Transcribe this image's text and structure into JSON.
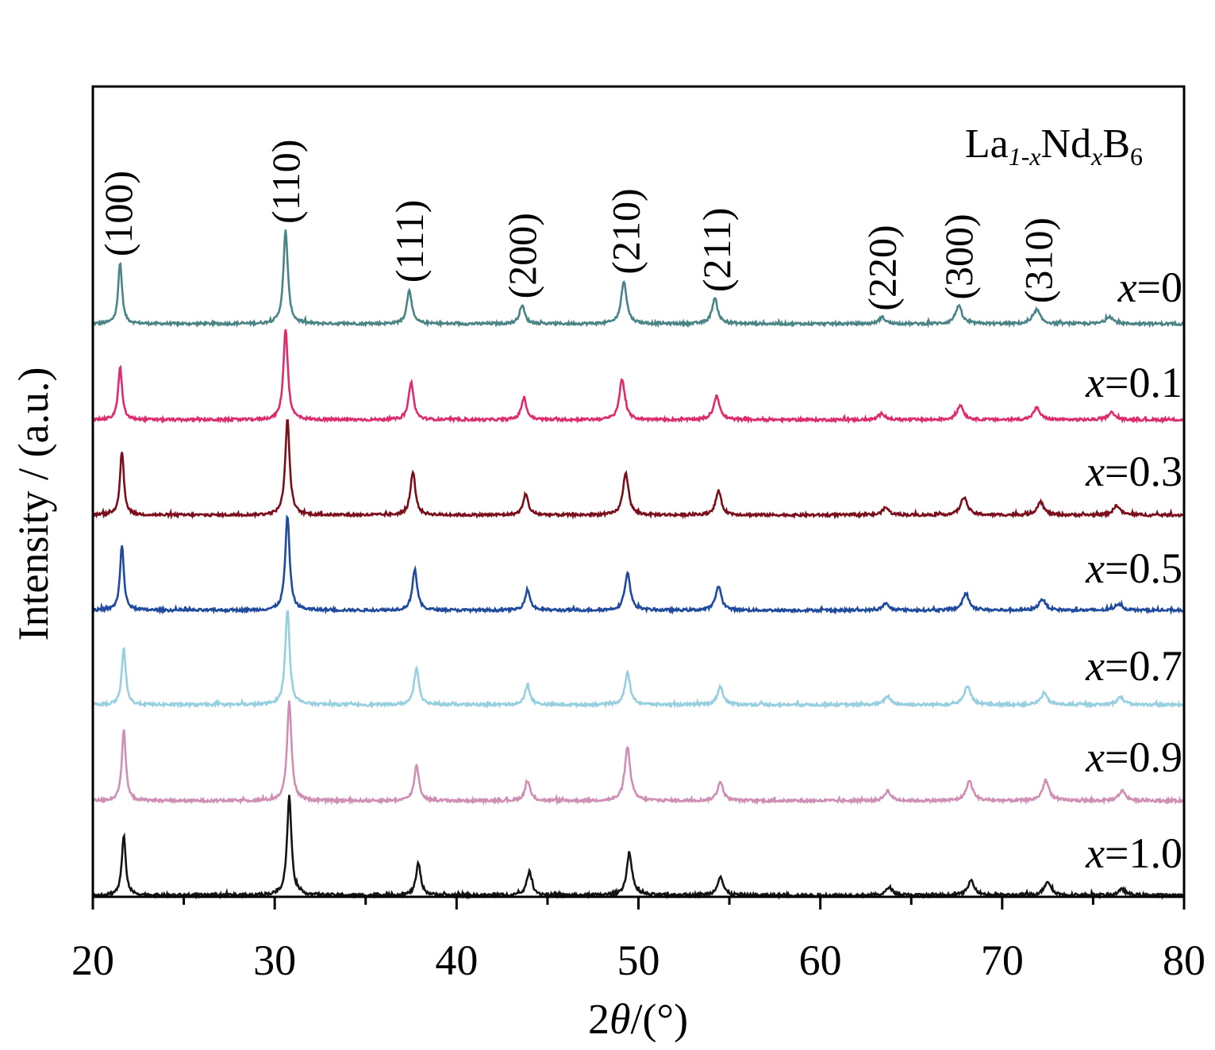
{
  "chart_data": {
    "type": "line",
    "title": "La1-xNdxB6",
    "title_parts": {
      "base1": "La",
      "sub1": "1-x",
      "base2": "Nd",
      "sub2": "x",
      "base3": "B",
      "sub3": "6"
    },
    "xlabel": "2θ/(°)",
    "xlabel_parts": {
      "pre": "2",
      "theta": "θ",
      "post": "/(°)"
    },
    "ylabel": "Intensity / (a.u.)",
    "xlim": [
      20,
      80
    ],
    "xticks": [
      20,
      30,
      40,
      50,
      60,
      70,
      80
    ],
    "xtick_labels": [
      "20",
      "30",
      "40",
      "50",
      "60",
      "70",
      "80"
    ],
    "grid": false,
    "legend": "series labels at right end of each trace",
    "peak_labels": [
      {
        "label": "(100)",
        "x": 21.4
      },
      {
        "label": "(110)",
        "x": 30.6
      },
      {
        "label": "(111)",
        "x": 37.4
      },
      {
        "label": "(200)",
        "x": 43.6
      },
      {
        "label": "(210)",
        "x": 49.3
      },
      {
        "label": "(211)",
        "x": 54.3
      },
      {
        "label": "(220)",
        "x": 63.4
      },
      {
        "label": "(300)",
        "x": 67.6
      },
      {
        "label": "(310)",
        "x": 72.0
      }
    ],
    "series": [
      {
        "name": "x=0",
        "var": "x",
        "eq": "=0",
        "color": "#4a8487",
        "peaks": [
          [
            21.5,
            0.65
          ],
          [
            30.6,
            1.0
          ],
          [
            37.4,
            0.37
          ],
          [
            43.6,
            0.2
          ],
          [
            49.2,
            0.46
          ],
          [
            54.2,
            0.27
          ],
          [
            63.4,
            0.07
          ],
          [
            67.6,
            0.19
          ],
          [
            71.9,
            0.15
          ],
          [
            75.9,
            0.08
          ]
        ]
      },
      {
        "name": "x=0.1",
        "var": "x",
        "eq": "=0.1",
        "color": "#dd2b6e",
        "peaks": [
          [
            21.5,
            0.58
          ],
          [
            30.6,
            1.0
          ],
          [
            37.5,
            0.42
          ],
          [
            43.7,
            0.24
          ],
          [
            49.1,
            0.45
          ],
          [
            54.3,
            0.27
          ],
          [
            63.4,
            0.07
          ],
          [
            67.7,
            0.16
          ],
          [
            71.9,
            0.13
          ],
          [
            76.0,
            0.08
          ]
        ]
      },
      {
        "name": "x=0.3",
        "var": "x",
        "eq": "=0.3",
        "color": "#7a0e1a",
        "peaks": [
          [
            21.6,
            0.67
          ],
          [
            30.7,
            1.0
          ],
          [
            37.6,
            0.46
          ],
          [
            43.8,
            0.22
          ],
          [
            49.3,
            0.45
          ],
          [
            54.4,
            0.25
          ],
          [
            63.6,
            0.08
          ],
          [
            67.9,
            0.19
          ],
          [
            72.1,
            0.14
          ],
          [
            76.3,
            0.1
          ]
        ]
      },
      {
        "name": "x=0.5",
        "var": "x",
        "eq": "=0.5",
        "color": "#1f4a9d",
        "peaks": [
          [
            21.6,
            0.69
          ],
          [
            30.7,
            1.0
          ],
          [
            37.7,
            0.44
          ],
          [
            43.9,
            0.22
          ],
          [
            49.4,
            0.4
          ],
          [
            54.4,
            0.26
          ],
          [
            63.6,
            0.07
          ],
          [
            68.0,
            0.18
          ],
          [
            72.2,
            0.12
          ],
          [
            76.4,
            0.07
          ]
        ]
      },
      {
        "name": "x=0.7",
        "var": "x",
        "eq": "=0.7",
        "color": "#95cfe0",
        "peaks": [
          [
            21.7,
            0.6
          ],
          [
            30.7,
            1.0
          ],
          [
            37.8,
            0.39
          ],
          [
            43.9,
            0.2
          ],
          [
            49.4,
            0.33
          ],
          [
            54.5,
            0.19
          ],
          [
            63.7,
            0.09
          ],
          [
            68.1,
            0.2
          ],
          [
            72.3,
            0.12
          ],
          [
            76.5,
            0.08
          ]
        ]
      },
      {
        "name": "x=0.9",
        "var": "x",
        "eq": "=0.9",
        "color": "#cf8fb5",
        "peaks": [
          [
            21.7,
            0.72
          ],
          [
            30.8,
            1.0
          ],
          [
            37.8,
            0.36
          ],
          [
            43.9,
            0.2
          ],
          [
            49.4,
            0.54
          ],
          [
            54.5,
            0.19
          ],
          [
            63.7,
            0.1
          ],
          [
            68.2,
            0.2
          ],
          [
            72.4,
            0.2
          ],
          [
            76.6,
            0.1
          ]
        ]
      },
      {
        "name": "x=1.0",
        "var": "x",
        "eq": "=1.0",
        "color": "#141414",
        "peaks": [
          [
            21.7,
            0.6
          ],
          [
            30.8,
            1.0
          ],
          [
            37.9,
            0.32
          ],
          [
            44.0,
            0.24
          ],
          [
            49.5,
            0.42
          ],
          [
            54.5,
            0.19
          ],
          [
            63.8,
            0.08
          ],
          [
            68.3,
            0.15
          ],
          [
            72.5,
            0.14
          ],
          [
            76.6,
            0.06
          ]
        ]
      }
    ]
  }
}
